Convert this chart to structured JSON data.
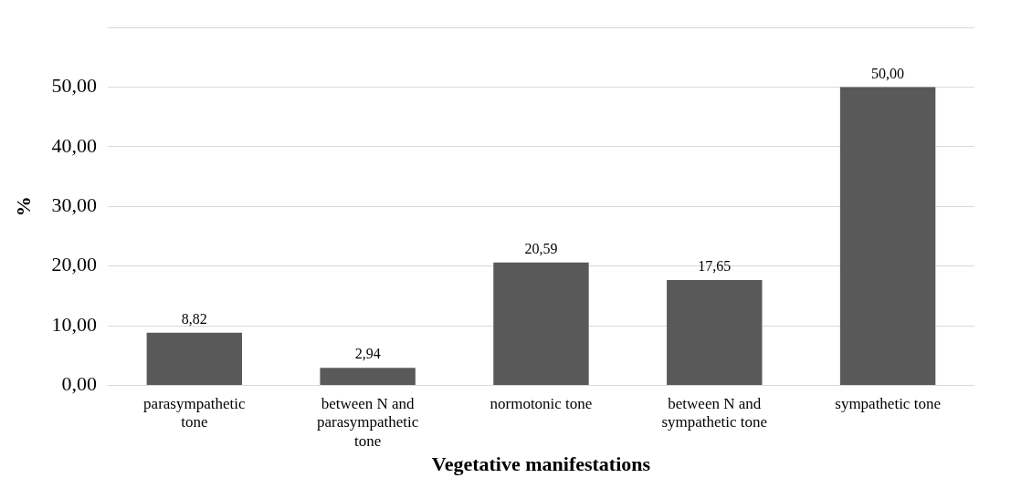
{
  "chart_data": {
    "type": "bar",
    "xlabel": "Vegetative manifestations",
    "ylabel": "%",
    "categories": [
      "parasympathetic tone",
      "between N and parasympathetic tone",
      "normotonic tone",
      "between N and sympathetic tone",
      "sympathetic tone"
    ],
    "values": [
      8.82,
      2.94,
      20.59,
      17.65,
      50.0
    ],
    "value_labels": [
      "8,82",
      "2,94",
      "20,59",
      "17,65",
      "50,00"
    ],
    "color": "#595959",
    "ylim": [
      0,
      60
    ],
    "yticks": [
      {
        "value": 0,
        "label": "0,00"
      },
      {
        "value": 10,
        "label": "10,00"
      },
      {
        "value": 20,
        "label": "20,00"
      },
      {
        "value": 30,
        "label": "30,00"
      },
      {
        "value": 40,
        "label": "40,00"
      },
      {
        "value": 50,
        "label": "50,00"
      },
      {
        "value": 60,
        "label": null
      }
    ],
    "grid": "y",
    "legend": false
  }
}
